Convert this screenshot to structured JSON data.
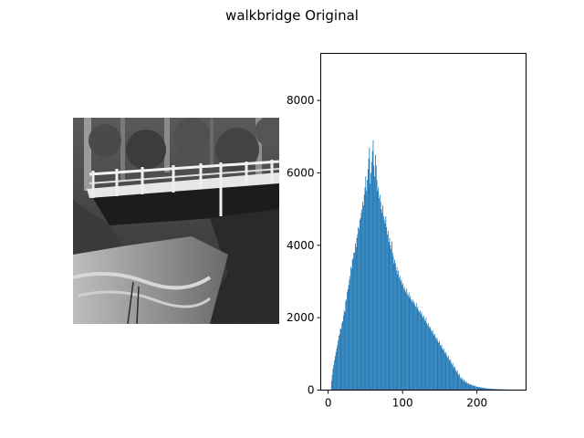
{
  "figure": {
    "title": "walkbridge Original"
  },
  "image_panel": {
    "icon": "grayscale-bridge-photo",
    "colormap": "gray"
  },
  "chart_data": {
    "type": "bar",
    "subtype": "histogram",
    "title": "",
    "xlabel": "",
    "ylabel": "",
    "color": "#1f77b4",
    "xlim": [
      -10,
      266
    ],
    "ylim": [
      0,
      9300
    ],
    "xticks": [
      0,
      100,
      200
    ],
    "yticks": [
      0,
      2000,
      4000,
      6000,
      8000
    ],
    "bin_start": 4,
    "bin_width": 1,
    "values": [
      250,
      420,
      600,
      700,
      830,
      950,
      1050,
      1150,
      1250,
      1380,
      1500,
      1550,
      1700,
      1680,
      1850,
      1900,
      2050,
      2200,
      2150,
      2450,
      2500,
      2700,
      2780,
      2900,
      3050,
      3150,
      3400,
      3350,
      3600,
      3650,
      3800,
      3800,
      4050,
      3950,
      4200,
      4300,
      4500,
      4450,
      4700,
      4750,
      4900,
      5000,
      5200,
      5100,
      5400,
      5600,
      5900,
      5500,
      5800,
      6100,
      6400,
      6700,
      5700,
      6000,
      6300,
      6600,
      6900,
      6200,
      5900,
      6500,
      6200,
      5800,
      5500,
      5600,
      5300,
      5400,
      5200,
      5000,
      4900,
      5100,
      4800,
      4700,
      4600,
      4800,
      4500,
      4300,
      4400,
      4100,
      4200,
      4000,
      3900,
      4100,
      3800,
      3700,
      3500,
      3600,
      3500,
      3300,
      3400,
      3200,
      3300,
      3100,
      3150,
      3000,
      3050,
      2900,
      2950,
      2800,
      2850,
      2750,
      2700,
      2800,
      2650,
      2600,
      2700,
      2550,
      2600,
      2500,
      2450,
      2500,
      2400,
      2450,
      2350,
      2300,
      2400,
      2250,
      2300,
      2200,
      2150,
      2200,
      2100,
      2150,
      2050,
      2000,
      2050,
      1950,
      1900,
      2000,
      1850,
      1800,
      1850,
      1750,
      1700,
      1750,
      1650,
      1600,
      1650,
      1550,
      1500,
      1550,
      1450,
      1400,
      1450,
      1350,
      1300,
      1350,
      1250,
      1200,
      1250,
      1150,
      1100,
      1150,
      1050,
      1000,
      1050,
      950,
      900,
      950,
      850,
      800,
      850,
      750,
      700,
      750,
      650,
      600,
      650,
      550,
      500,
      550,
      450,
      400,
      450,
      350,
      300,
      350,
      300,
      250,
      300,
      250,
      200,
      250,
      200,
      180,
      200,
      160,
      150,
      170,
      140,
      130,
      140,
      120,
      110,
      120,
      100,
      90,
      100,
      85,
      80,
      85,
      75,
      70,
      75,
      65,
      60,
      65,
      55,
      50,
      55,
      45,
      40,
      45,
      40,
      35,
      40,
      35,
      30,
      35,
      30,
      28,
      30,
      26,
      25,
      26,
      24,
      22,
      24,
      22,
      20,
      22,
      20,
      18,
      20,
      18,
      16,
      18,
      16,
      15,
      16,
      15,
      14,
      15,
      14,
      13,
      14,
      13,
      12,
      13,
      12,
      11,
      12,
      11,
      10
    ]
  }
}
